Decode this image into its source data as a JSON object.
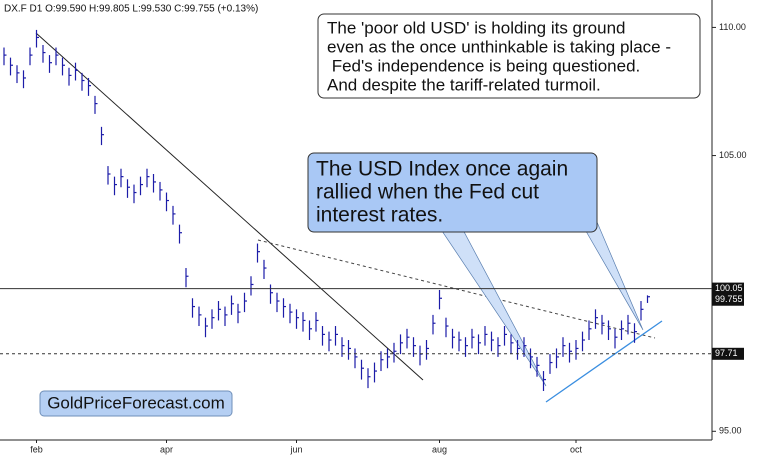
{
  "chart_data": {
    "type": "hlc",
    "header": "DX.F  D1  O:99.590  H:99.805  L:99.530  C:99.755  (+0.13%)",
    "log": true,
    "color": "#1c1ca8",
    "ylim": [
      94.7,
      111.1
    ],
    "yticks": [
      {
        "value": 110,
        "label": "110.00"
      },
      {
        "value": 105,
        "label": "105.00"
      },
      {
        "value": 95,
        "label": "95.00"
      }
    ],
    "levels": [
      {
        "value": 100.05,
        "line": "solid"
      },
      {
        "value": 97.71,
        "line": "dashed"
      }
    ],
    "last_price": 99.755,
    "categories": [
      null,
      null,
      null,
      null,
      null,
      "feb",
      null,
      null,
      null,
      null,
      null,
      null,
      null,
      null,
      null,
      null,
      null,
      null,
      null,
      null,
      null,
      null,
      null,
      null,
      null,
      "apr",
      null,
      null,
      null,
      null,
      null,
      null,
      null,
      null,
      null,
      null,
      null,
      null,
      null,
      null,
      null,
      null,
      null,
      null,
      null,
      "jun",
      null,
      null,
      null,
      null,
      null,
      null,
      null,
      null,
      null,
      null,
      null,
      null,
      null,
      null,
      null,
      null,
      null,
      null,
      null,
      null,
      null,
      "aug",
      null,
      null,
      null,
      null,
      null,
      null,
      null,
      null,
      null,
      null,
      null,
      null,
      null,
      null,
      null,
      null,
      null,
      null,
      null,
      null,
      "oct",
      null,
      null,
      null,
      null,
      null,
      null,
      null,
      null,
      null,
      null,
      null
    ],
    "high": [
      109.2,
      108.8,
      108.5,
      108.3,
      109.2,
      109.9,
      109.3,
      108.9,
      109.2,
      108.8,
      108.4,
      108.6,
      108.2,
      108.0,
      107.3,
      106.1,
      104.6,
      104.2,
      104.5,
      104.1,
      103.9,
      104.2,
      104.5,
      104.3,
      104.0,
      103.6,
      103.1,
      102.4,
      100.8,
      99.7,
      99.4,
      99.0,
      99.3,
      99.6,
      99.4,
      99.8,
      99.5,
      99.9,
      100.5,
      101.7,
      101.1,
      100.2,
      99.9,
      99.7,
      99.5,
      99.3,
      99.2,
      98.9,
      99.2,
      98.7,
      98.5,
      98.7,
      98.3,
      98.2,
      97.9,
      97.5,
      97.2,
      97.4,
      97.8,
      97.9,
      98.1,
      98.4,
      98.6,
      98.3,
      98.0,
      98.2,
      99.1,
      100.0,
      99.0,
      98.6,
      98.5,
      98.3,
      98.6,
      98.4,
      98.7,
      98.5,
      98.3,
      98.7,
      98.4,
      98.2,
      98.3,
      97.9,
      97.6,
      97.1,
      97.7,
      97.9,
      98.3,
      98.1,
      98.2,
      98.5,
      98.9,
      99.3,
      99.1,
      98.9,
      98.6,
      98.9,
      99.1,
      98.8,
      99.6,
      99.805
    ],
    "low": [
      108.5,
      108.1,
      107.8,
      107.6,
      108.5,
      109.2,
      108.6,
      108.2,
      108.5,
      108.1,
      107.7,
      107.9,
      107.5,
      107.3,
      106.6,
      105.4,
      103.9,
      103.5,
      103.8,
      103.4,
      103.2,
      103.5,
      103.8,
      103.6,
      103.3,
      102.9,
      102.4,
      101.7,
      100.1,
      99.0,
      98.7,
      98.3,
      98.6,
      98.9,
      98.7,
      99.1,
      98.8,
      99.2,
      99.8,
      101.0,
      100.4,
      99.5,
      99.2,
      99.0,
      98.8,
      98.6,
      98.5,
      98.2,
      98.5,
      98.0,
      97.8,
      98.0,
      97.6,
      97.5,
      97.2,
      96.8,
      96.5,
      96.7,
      97.1,
      97.2,
      97.4,
      97.7,
      97.9,
      97.6,
      97.3,
      97.5,
      98.4,
      99.3,
      98.3,
      97.9,
      97.8,
      97.6,
      97.9,
      97.7,
      98.0,
      97.8,
      97.6,
      98.0,
      97.7,
      97.5,
      97.6,
      97.2,
      96.9,
      96.4,
      97.0,
      97.2,
      97.6,
      97.4,
      97.5,
      97.8,
      98.2,
      98.6,
      98.4,
      98.2,
      97.9,
      98.2,
      98.4,
      98.1,
      98.9,
      99.53
    ],
    "close": [
      108.9,
      108.5,
      108.2,
      108.0,
      108.9,
      109.6,
      109.0,
      108.6,
      108.9,
      108.5,
      108.1,
      108.3,
      107.9,
      107.7,
      107.0,
      105.8,
      104.3,
      103.9,
      104.2,
      103.8,
      103.6,
      103.9,
      104.2,
      104.0,
      103.7,
      103.3,
      102.8,
      102.1,
      100.5,
      99.4,
      99.1,
      98.7,
      99.0,
      99.3,
      99.1,
      99.5,
      99.2,
      99.6,
      100.2,
      101.4,
      100.8,
      99.9,
      99.6,
      99.4,
      99.2,
      99.0,
      98.9,
      98.6,
      98.9,
      98.4,
      98.2,
      98.4,
      98.0,
      97.9,
      97.6,
      97.2,
      96.9,
      97.1,
      97.5,
      97.6,
      97.8,
      98.1,
      98.3,
      98.0,
      97.7,
      97.9,
      98.8,
      99.7,
      98.7,
      98.3,
      98.2,
      98.0,
      98.3,
      98.1,
      98.4,
      98.2,
      98.0,
      98.4,
      98.1,
      97.9,
      98.0,
      97.6,
      97.3,
      96.8,
      97.4,
      97.6,
      98.0,
      97.8,
      97.9,
      98.2,
      98.6,
      99.0,
      98.8,
      98.6,
      98.3,
      98.6,
      98.8,
      98.5,
      99.3,
      99.755
    ],
    "annotations": [
      {
        "lines": [
          "The 'poor old USD' is holding its ground",
          "even as the once unthinkable is taking place -",
          " Fed's independence is being questioned.",
          "And despite the tariff-related turmoil."
        ]
      },
      {
        "lines": [
          "The USD Index once again",
          "rallied when the Fed cut",
          "interest rates."
        ]
      }
    ],
    "watermark": "GoldPriceForecast.com"
  }
}
